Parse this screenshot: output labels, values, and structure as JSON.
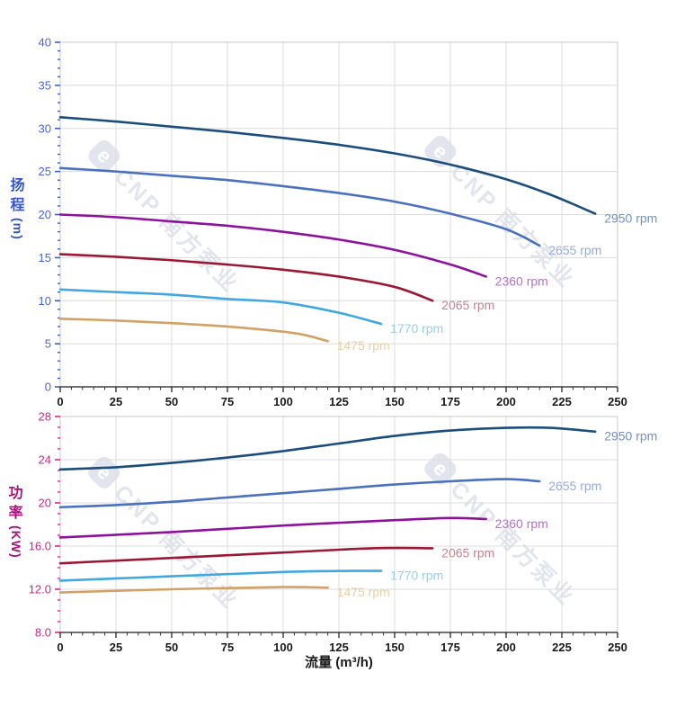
{
  "watermark": {
    "logo": "e",
    "text": "CNP 南方泵业"
  },
  "xaxis_title": "流量 (m³/h)",
  "chart_data": [
    {
      "type": "line",
      "title": "",
      "ylabel": "扬程 (m)",
      "ylabel_chars": [
        "扬",
        "程"
      ],
      "ylabel_unit": "(m)",
      "xlabel": "流量 (m³/h)",
      "xlim": [
        0,
        250
      ],
      "ylim": [
        0,
        40
      ],
      "x_major": 25,
      "x_minor": 5,
      "y_major": 5,
      "y_minor": 1,
      "grid": true,
      "x_tick_labels": [
        "0",
        "25",
        "50",
        "75",
        "100",
        "125",
        "150",
        "175",
        "200",
        "225",
        "250"
      ],
      "y_tick_labels": [
        "0",
        "5",
        "10",
        "15",
        "20",
        "25",
        "30",
        "35",
        "40"
      ],
      "axis_tick_color": "#3a5ed6",
      "tick_label_color": "#4565da",
      "series": [
        {
          "name": "2950 rpm",
          "color": "#1b4d7d",
          "label_color": "#7291bb",
          "points": [
            [
              0,
              31.3
            ],
            [
              25,
              30.8
            ],
            [
              50,
              30.2
            ],
            [
              75,
              29.6
            ],
            [
              100,
              28.9
            ],
            [
              125,
              28.1
            ],
            [
              150,
              27.1
            ],
            [
              175,
              25.8
            ],
            [
              200,
              24.1
            ],
            [
              220,
              22.3
            ],
            [
              240,
              20.1
            ]
          ]
        },
        {
          "name": "2655 rpm",
          "color": "#4a70c0",
          "label_color": "#95abdc",
          "points": [
            [
              0,
              25.4
            ],
            [
              25,
              25.0
            ],
            [
              50,
              24.5
            ],
            [
              75,
              24.0
            ],
            [
              100,
              23.3
            ],
            [
              125,
              22.5
            ],
            [
              150,
              21.5
            ],
            [
              175,
              20.1
            ],
            [
              200,
              18.3
            ],
            [
              215,
              16.4
            ]
          ]
        },
        {
          "name": "2360 rpm",
          "color": "#8e119e",
          "label_color": "#b173c4",
          "points": [
            [
              0,
              20.0
            ],
            [
              25,
              19.7
            ],
            [
              50,
              19.2
            ],
            [
              75,
              18.7
            ],
            [
              100,
              18.0
            ],
            [
              125,
              17.1
            ],
            [
              150,
              15.9
            ],
            [
              175,
              14.2
            ],
            [
              191,
              12.8
            ]
          ]
        },
        {
          "name": "2065 rpm",
          "color": "#9c1733",
          "label_color": "#bf8494",
          "points": [
            [
              0,
              15.4
            ],
            [
              25,
              15.1
            ],
            [
              50,
              14.7
            ],
            [
              75,
              14.2
            ],
            [
              100,
              13.6
            ],
            [
              125,
              12.8
            ],
            [
              150,
              11.6
            ],
            [
              167,
              10.0
            ]
          ]
        },
        {
          "name": "1770 rpm",
          "color": "#3fa8e0",
          "label_color": "#90d0f0",
          "points": [
            [
              0,
              11.3
            ],
            [
              25,
              11.0
            ],
            [
              50,
              10.7
            ],
            [
              75,
              10.2
            ],
            [
              100,
              9.8
            ],
            [
              125,
              8.6
            ],
            [
              144,
              7.3
            ]
          ]
        },
        {
          "name": "1475 rpm",
          "color": "#d2a166",
          "label_color": "#e9cfa2",
          "points": [
            [
              0,
              7.9
            ],
            [
              25,
              7.7
            ],
            [
              50,
              7.4
            ],
            [
              75,
              7.0
            ],
            [
              100,
              6.4
            ],
            [
              110,
              6.0
            ],
            [
              120,
              5.3
            ]
          ]
        }
      ]
    },
    {
      "type": "line",
      "title": "",
      "ylabel": "功率 (KW)",
      "ylabel_chars": [
        "功",
        "率"
      ],
      "ylabel_unit": "(KW)",
      "xlabel": "流量 (m³/h)",
      "xlim": [
        0,
        250
      ],
      "ylim": [
        8,
        28
      ],
      "x_major": 25,
      "x_minor": 5,
      "y_major": 4,
      "y_minor": 1,
      "grid": true,
      "x_tick_labels": [
        "0",
        "25",
        "50",
        "75",
        "100",
        "125",
        "150",
        "175",
        "200",
        "225",
        "250"
      ],
      "y_tick_labels": [
        "8.0",
        "12.0",
        "16.0",
        "20",
        "24",
        "28"
      ],
      "axis_tick_color": "#e81f9a",
      "tick_label_color": "#c32887",
      "series": [
        {
          "name": "2950 rpm",
          "color": "#1b4d7d",
          "label_color": "#7291bb",
          "points": [
            [
              0,
              23.1
            ],
            [
              25,
              23.3
            ],
            [
              50,
              23.7
            ],
            [
              75,
              24.2
            ],
            [
              100,
              24.8
            ],
            [
              125,
              25.5
            ],
            [
              150,
              26.2
            ],
            [
              175,
              26.7
            ],
            [
              200,
              26.95
            ],
            [
              220,
              26.95
            ],
            [
              240,
              26.6
            ]
          ]
        },
        {
          "name": "2655 rpm",
          "color": "#4a70c0",
          "label_color": "#95abdc",
          "points": [
            [
              0,
              19.6
            ],
            [
              25,
              19.8
            ],
            [
              50,
              20.1
            ],
            [
              75,
              20.5
            ],
            [
              100,
              20.9
            ],
            [
              125,
              21.3
            ],
            [
              150,
              21.7
            ],
            [
              175,
              22.0
            ],
            [
              200,
              22.2
            ],
            [
              215,
              22.0
            ]
          ]
        },
        {
          "name": "2360 rpm",
          "color": "#8e119e",
          "label_color": "#b173c4",
          "points": [
            [
              0,
              16.8
            ],
            [
              50,
              17.3
            ],
            [
              100,
              17.9
            ],
            [
              150,
              18.4
            ],
            [
              175,
              18.6
            ],
            [
              191,
              18.5
            ]
          ]
        },
        {
          "name": "2065 rpm",
          "color": "#9c1733",
          "label_color": "#bf8494",
          "points": [
            [
              0,
              14.4
            ],
            [
              50,
              14.9
            ],
            [
              100,
              15.4
            ],
            [
              140,
              15.8
            ],
            [
              167,
              15.8
            ]
          ]
        },
        {
          "name": "1770 rpm",
          "color": "#3fa8e0",
          "label_color": "#90d0f0",
          "points": [
            [
              0,
              12.8
            ],
            [
              50,
              13.2
            ],
            [
              100,
              13.6
            ],
            [
              130,
              13.7
            ],
            [
              144,
              13.7
            ]
          ]
        },
        {
          "name": "1475 rpm",
          "color": "#d2a166",
          "label_color": "#e9cfa2",
          "points": [
            [
              0,
              11.7
            ],
            [
              50,
              12.0
            ],
            [
              100,
              12.2
            ],
            [
              120,
              12.15
            ]
          ]
        }
      ]
    }
  ]
}
